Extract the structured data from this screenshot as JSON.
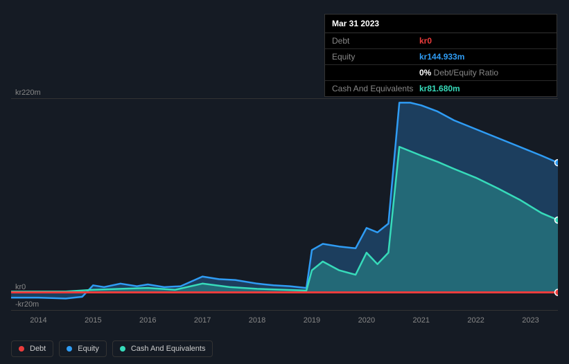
{
  "tooltip": {
    "date": "Mar 31 2023",
    "rows": [
      {
        "label": "Debt",
        "value": "kr0",
        "color": "#eb3c3c"
      },
      {
        "label": "Equity",
        "value": "kr144.933m",
        "color": "#2f9cf4"
      },
      {
        "label": "",
        "value": "0%",
        "suffix": " Debt/Equity Ratio",
        "color": "#ffffff"
      },
      {
        "label": "Cash And Equivalents",
        "value": "kr81.680m",
        "color": "#37dbba"
      }
    ]
  },
  "chart": {
    "type": "area",
    "background": "#151b24",
    "grid_color": "#333333",
    "ylim": [
      -20,
      220
    ],
    "ylabels": [
      {
        "v": 220,
        "text": "kr220m"
      },
      {
        "v": 0,
        "text": "kr0"
      },
      {
        "v": -20,
        "text": "-kr20m"
      }
    ],
    "xlim": [
      2013.5,
      2023.5
    ],
    "xticks": [
      2014,
      2015,
      2016,
      2017,
      2018,
      2019,
      2020,
      2021,
      2022,
      2023
    ],
    "series": {
      "equity": {
        "color": "#2f9cf4",
        "fill": "rgba(47,156,244,0.28)",
        "line_width": 2.5,
        "data": [
          [
            2013.5,
            -6
          ],
          [
            2014.0,
            -6
          ],
          [
            2014.5,
            -7
          ],
          [
            2014.8,
            -5
          ],
          [
            2015.0,
            8
          ],
          [
            2015.2,
            6
          ],
          [
            2015.5,
            10
          ],
          [
            2015.8,
            7
          ],
          [
            2016.0,
            9
          ],
          [
            2016.3,
            6
          ],
          [
            2016.6,
            7
          ],
          [
            2017.0,
            18
          ],
          [
            2017.3,
            15
          ],
          [
            2017.6,
            14
          ],
          [
            2018.0,
            10
          ],
          [
            2018.3,
            8
          ],
          [
            2018.6,
            7
          ],
          [
            2018.9,
            5
          ],
          [
            2019.0,
            48
          ],
          [
            2019.2,
            55
          ],
          [
            2019.5,
            52
          ],
          [
            2019.8,
            50
          ],
          [
            2020.0,
            73
          ],
          [
            2020.2,
            68
          ],
          [
            2020.4,
            78
          ],
          [
            2020.6,
            215
          ],
          [
            2020.8,
            215
          ],
          [
            2021.0,
            212
          ],
          [
            2021.3,
            205
          ],
          [
            2021.6,
            195
          ],
          [
            2022.0,
            185
          ],
          [
            2022.4,
            175
          ],
          [
            2022.8,
            165
          ],
          [
            2023.2,
            155
          ],
          [
            2023.5,
            147
          ]
        ]
      },
      "cash": {
        "color": "#37dbba",
        "fill": "rgba(55,219,186,0.28)",
        "line_width": 2.5,
        "data": [
          [
            2013.5,
            1
          ],
          [
            2014.5,
            1
          ],
          [
            2015.0,
            3
          ],
          [
            2015.5,
            4
          ],
          [
            2016.0,
            5
          ],
          [
            2016.5,
            3
          ],
          [
            2017.0,
            10
          ],
          [
            2017.5,
            6
          ],
          [
            2018.0,
            4
          ],
          [
            2018.5,
            3
          ],
          [
            2018.9,
            2
          ],
          [
            2019.0,
            25
          ],
          [
            2019.2,
            35
          ],
          [
            2019.5,
            25
          ],
          [
            2019.8,
            20
          ],
          [
            2020.0,
            45
          ],
          [
            2020.2,
            32
          ],
          [
            2020.4,
            45
          ],
          [
            2020.6,
            165
          ],
          [
            2020.8,
            160
          ],
          [
            2021.0,
            155
          ],
          [
            2021.3,
            148
          ],
          [
            2021.6,
            140
          ],
          [
            2022.0,
            130
          ],
          [
            2022.4,
            118
          ],
          [
            2022.8,
            105
          ],
          [
            2023.2,
            90
          ],
          [
            2023.5,
            82
          ]
        ]
      },
      "debt": {
        "color": "#eb3c3c",
        "line_width": 3,
        "data": [
          [
            2013.5,
            0
          ],
          [
            2023.5,
            0
          ]
        ]
      }
    },
    "markers": [
      {
        "x": 2023.5,
        "y": 147,
        "color": "#2f9cf4"
      },
      {
        "x": 2023.5,
        "y": 82,
        "color": "#37dbba"
      },
      {
        "x": 2023.5,
        "y": 0,
        "color": "#eb3c3c"
      }
    ]
  },
  "legend": [
    {
      "label": "Debt",
      "color": "#eb3c3c"
    },
    {
      "label": "Equity",
      "color": "#2f9cf4"
    },
    {
      "label": "Cash And Equivalents",
      "color": "#37dbba"
    }
  ]
}
